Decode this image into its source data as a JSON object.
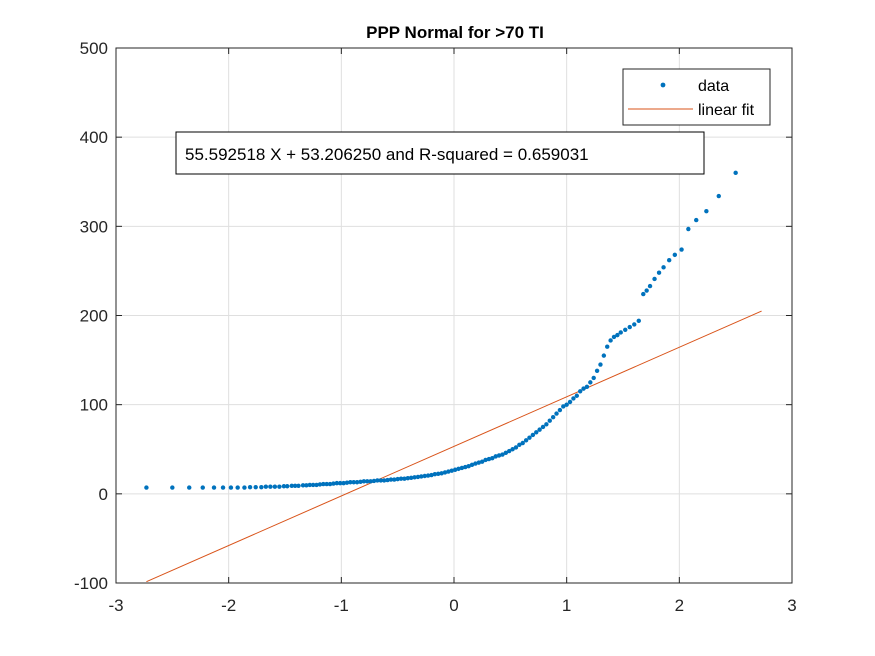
{
  "chart_data": {
    "type": "scatter",
    "title": "PPP Normal for >70 TI",
    "xlabel": "",
    "ylabel": "",
    "xlim": [
      -3,
      3
    ],
    "ylim": [
      -100,
      500
    ],
    "xticks": [
      -3,
      -2,
      -1,
      0,
      1,
      2,
      3
    ],
    "yticks": [
      -100,
      0,
      100,
      200,
      300,
      400,
      500
    ],
    "xtick_labels": [
      "-3",
      "-2",
      "-1",
      "0",
      "1",
      "2",
      "3"
    ],
    "ytick_labels": [
      "-100",
      "0",
      "100",
      "200",
      "300",
      "400",
      "500"
    ],
    "grid": true,
    "legend": {
      "position": "top-right",
      "entries": [
        "data",
        "linear fit"
      ]
    },
    "annotation": "55.592518 X + 53.206250 and R-squared = 0.659031",
    "colors": {
      "data": "#0072BD",
      "fit": "#D95319"
    },
    "series": [
      {
        "name": "data",
        "style": "points",
        "points": [
          [
            -2.73,
            7
          ],
          [
            -2.5,
            7
          ],
          [
            -2.35,
            7
          ],
          [
            -2.23,
            7
          ],
          [
            -2.13,
            7
          ],
          [
            -2.05,
            7
          ],
          [
            -1.98,
            7
          ],
          [
            -1.92,
            7
          ],
          [
            -1.86,
            7
          ],
          [
            -1.81,
            7.5
          ],
          [
            -1.76,
            7.5
          ],
          [
            -1.71,
            7.5
          ],
          [
            -1.67,
            8
          ],
          [
            -1.63,
            8
          ],
          [
            -1.59,
            8
          ],
          [
            -1.55,
            8
          ],
          [
            -1.51,
            8.5
          ],
          [
            -1.48,
            8.5
          ],
          [
            -1.44,
            9
          ],
          [
            -1.41,
            9
          ],
          [
            -1.38,
            9
          ],
          [
            -1.34,
            9.5
          ],
          [
            -1.31,
            9.5
          ],
          [
            -1.28,
            10
          ],
          [
            -1.25,
            10
          ],
          [
            -1.22,
            10
          ],
          [
            -1.19,
            10.5
          ],
          [
            -1.16,
            11
          ],
          [
            -1.13,
            11
          ],
          [
            -1.1,
            11
          ],
          [
            -1.07,
            11.5
          ],
          [
            -1.04,
            12
          ],
          [
            -1.01,
            12
          ],
          [
            -0.98,
            12
          ],
          [
            -0.95,
            12.5
          ],
          [
            -0.92,
            13
          ],
          [
            -0.89,
            13
          ],
          [
            -0.86,
            13
          ],
          [
            -0.83,
            13.5
          ],
          [
            -0.8,
            14
          ],
          [
            -0.77,
            14
          ],
          [
            -0.74,
            14
          ],
          [
            -0.71,
            14.5
          ],
          [
            -0.68,
            15
          ],
          [
            -0.65,
            15
          ],
          [
            -0.62,
            15
          ],
          [
            -0.59,
            15.5
          ],
          [
            -0.56,
            16
          ],
          [
            -0.53,
            16
          ],
          [
            -0.5,
            16.5
          ],
          [
            -0.47,
            17
          ],
          [
            -0.44,
            17
          ],
          [
            -0.41,
            17.5
          ],
          [
            -0.38,
            18
          ],
          [
            -0.35,
            18.5
          ],
          [
            -0.32,
            19
          ],
          [
            -0.29,
            19.5
          ],
          [
            -0.26,
            20
          ],
          [
            -0.23,
            20.5
          ],
          [
            -0.2,
            21
          ],
          [
            -0.17,
            22
          ],
          [
            -0.14,
            22.5
          ],
          [
            -0.11,
            23
          ],
          [
            -0.08,
            24
          ],
          [
            -0.05,
            25
          ],
          [
            -0.02,
            26
          ],
          [
            0.01,
            27
          ],
          [
            0.04,
            28
          ],
          [
            0.07,
            29
          ],
          [
            0.1,
            30
          ],
          [
            0.13,
            31
          ],
          [
            0.16,
            32.5
          ],
          [
            0.19,
            34
          ],
          [
            0.22,
            35
          ],
          [
            0.25,
            36
          ],
          [
            0.28,
            38
          ],
          [
            0.31,
            39
          ],
          [
            0.34,
            40
          ],
          [
            0.37,
            42
          ],
          [
            0.4,
            43
          ],
          [
            0.43,
            44
          ],
          [
            0.46,
            46
          ],
          [
            0.49,
            48
          ],
          [
            0.52,
            50
          ],
          [
            0.55,
            52
          ],
          [
            0.58,
            55
          ],
          [
            0.61,
            57
          ],
          [
            0.64,
            60
          ],
          [
            0.67,
            63
          ],
          [
            0.7,
            66
          ],
          [
            0.73,
            69
          ],
          [
            0.76,
            72
          ],
          [
            0.79,
            75
          ],
          [
            0.82,
            78
          ],
          [
            0.85,
            82
          ],
          [
            0.88,
            86
          ],
          [
            0.91,
            90
          ],
          [
            0.94,
            94
          ],
          [
            0.97,
            98
          ],
          [
            1.0,
            100
          ],
          [
            1.03,
            103
          ],
          [
            1.06,
            107
          ],
          [
            1.09,
            110
          ],
          [
            1.12,
            115
          ],
          [
            1.15,
            118
          ],
          [
            1.18,
            120
          ],
          [
            1.21,
            125
          ],
          [
            1.24,
            130
          ],
          [
            1.27,
            138
          ],
          [
            1.3,
            145
          ],
          [
            1.33,
            155
          ],
          [
            1.36,
            165
          ],
          [
            1.39,
            172
          ],
          [
            1.42,
            176
          ],
          [
            1.45,
            178
          ],
          [
            1.48,
            181
          ],
          [
            1.52,
            184
          ],
          [
            1.56,
            187
          ],
          [
            1.6,
            190
          ],
          [
            1.64,
            194
          ],
          [
            1.68,
            224
          ],
          [
            1.71,
            228
          ],
          [
            1.74,
            233
          ],
          [
            1.78,
            241
          ],
          [
            1.82,
            248
          ],
          [
            1.86,
            254
          ],
          [
            1.91,
            262
          ],
          [
            1.96,
            268
          ],
          [
            2.02,
            274
          ],
          [
            2.08,
            297
          ],
          [
            2.15,
            307
          ],
          [
            2.24,
            317
          ],
          [
            2.35,
            334
          ],
          [
            2.5,
            360
          ]
        ]
      },
      {
        "name": "linear fit",
        "style": "line",
        "points": [
          [
            -2.73,
            -98.56
          ],
          [
            2.73,
            204.98
          ]
        ]
      }
    ]
  }
}
